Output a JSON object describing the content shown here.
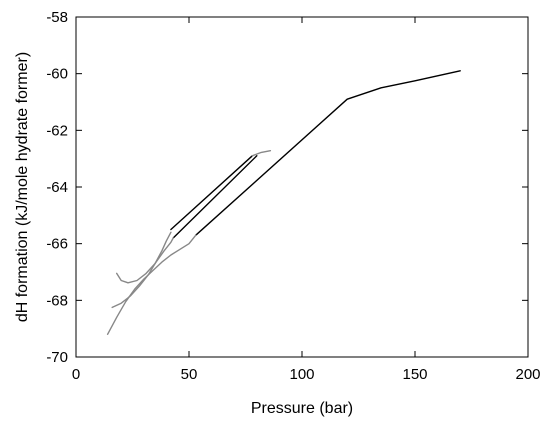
{
  "chart_data": {
    "type": "line",
    "title": "",
    "xlabel": "Pressure (bar)",
    "ylabel": "dH formation (kJ/mole hydrate former)",
    "xlim": [
      0,
      200
    ],
    "ylim": [
      -70,
      -58
    ],
    "x_ticks": [
      0,
      50,
      100,
      150,
      200
    ],
    "y_ticks": [
      -70,
      -68,
      -66,
      -64,
      -62,
      -60,
      -58
    ],
    "x_tick_labels": [
      "0",
      "50",
      "100",
      "150",
      "200"
    ],
    "y_tick_labels": [
      "-70",
      "-68",
      "-66",
      "-64",
      "-62",
      "-60",
      "-58"
    ],
    "grid": false,
    "legend": "none",
    "series": [
      {
        "color": "#000000",
        "x": [
          53,
          120,
          135,
          150,
          170
        ],
        "y": [
          -65.7,
          -60.9,
          -60.5,
          -60.25,
          -59.9
        ]
      },
      {
        "color": "#000000",
        "x": [
          43,
          80
        ],
        "y": [
          -65.8,
          -62.9
        ]
      },
      {
        "color": "#000000",
        "x": [
          42,
          78
        ],
        "y": [
          -65.5,
          -62.9
        ]
      },
      {
        "color": "#888888",
        "x": [
          14,
          18,
          22,
          26,
          30,
          34,
          38,
          42,
          46,
          50,
          53
        ],
        "y": [
          -69.2,
          -68.6,
          -68.05,
          -67.6,
          -67.25,
          -66.95,
          -66.65,
          -66.4,
          -66.2,
          -66.0,
          -65.7
        ]
      },
      {
        "color": "#888888",
        "x": [
          16,
          20,
          24,
          28,
          32,
          35,
          38,
          40,
          42
        ],
        "y": [
          -68.25,
          -68.1,
          -67.85,
          -67.5,
          -67.1,
          -66.7,
          -66.25,
          -65.9,
          -65.6
        ]
      },
      {
        "color": "#888888",
        "x": [
          18,
          20,
          23,
          27,
          31,
          35,
          39,
          42,
          43
        ],
        "y": [
          -67.05,
          -67.3,
          -67.38,
          -67.3,
          -67.05,
          -66.7,
          -66.25,
          -65.95,
          -65.8
        ]
      },
      {
        "color": "#888888",
        "x": [
          78,
          82,
          86
        ],
        "y": [
          -62.9,
          -62.78,
          -62.72
        ]
      }
    ]
  }
}
